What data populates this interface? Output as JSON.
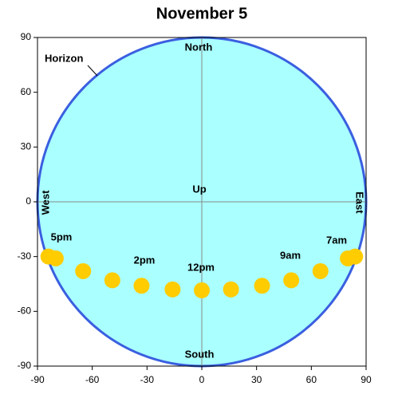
{
  "chart_data": {
    "type": "scatter",
    "title": "November 5",
    "x": [
      -84,
      -80,
      -65,
      -49,
      -33,
      -16,
      0,
      16,
      33,
      49,
      65,
      80,
      84
    ],
    "values": [
      -30,
      -31,
      -38,
      -43,
      -46,
      -48,
      -48.5,
      -48,
      -46,
      -43,
      -38,
      -31,
      -30
    ],
    "color": "#ffcc00",
    "horizon_color": "#3a5fe0",
    "sky_color": "#aaffff",
    "xlim": [
      -90,
      90
    ],
    "ylim": [
      -90,
      90
    ],
    "xticks": [
      -90,
      -60,
      -30,
      0,
      30,
      60,
      90
    ],
    "yticks": [
      -90,
      -60,
      -30,
      0,
      30,
      60,
      90
    ],
    "annotations": [
      "Horizon",
      "North",
      "South",
      "Up",
      "East",
      "West",
      "5pm",
      "2pm",
      "12pm",
      "9am",
      "7am"
    ]
  }
}
